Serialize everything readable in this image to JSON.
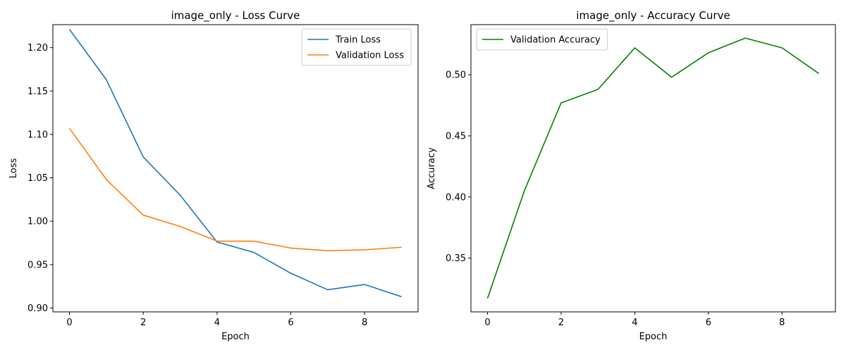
{
  "chart_data": [
    {
      "type": "line",
      "title": "image_only - Loss Curve",
      "xlabel": "Epoch",
      "ylabel": "Loss",
      "x": [
        0,
        1,
        2,
        3,
        4,
        5,
        6,
        7,
        8,
        9
      ],
      "xlim": [
        -0.45,
        9.45
      ],
      "ylim": [
        0.8955,
        1.2265
      ],
      "xticks": [
        0,
        2,
        4,
        6,
        8
      ],
      "yticks": [
        0.9,
        0.95,
        1.0,
        1.05,
        1.1,
        1.15,
        1.2
      ],
      "tick_decimals": 2,
      "legend": "top-right",
      "grid": false,
      "series": [
        {
          "name": "Train Loss",
          "color": "#1f77b4",
          "values": [
            1.221,
            1.163,
            1.074,
            1.03,
            0.976,
            0.964,
            0.94,
            0.921,
            0.927,
            0.913
          ]
        },
        {
          "name": "Validation Loss",
          "color": "#ff7f0e",
          "values": [
            1.107,
            1.048,
            1.007,
            0.994,
            0.977,
            0.977,
            0.969,
            0.966,
            0.967,
            0.97
          ]
        }
      ]
    },
    {
      "type": "line",
      "title": "image_only - Accuracy Curve",
      "xlabel": "Epoch",
      "ylabel": "Accuracy",
      "x": [
        0,
        1,
        2,
        3,
        4,
        5,
        6,
        7,
        8,
        9
      ],
      "xlim": [
        -0.45,
        9.45
      ],
      "ylim": [
        0.306,
        0.541
      ],
      "xticks": [
        0,
        2,
        4,
        6,
        8
      ],
      "yticks": [
        0.35,
        0.4,
        0.45,
        0.5
      ],
      "tick_decimals": 2,
      "legend": "top-left",
      "grid": false,
      "series": [
        {
          "name": "Validation Accuracy",
          "color": "#008000",
          "values": [
            0.317,
            0.405,
            0.477,
            0.488,
            0.522,
            0.498,
            0.518,
            0.53,
            0.522,
            0.501
          ]
        }
      ]
    }
  ]
}
